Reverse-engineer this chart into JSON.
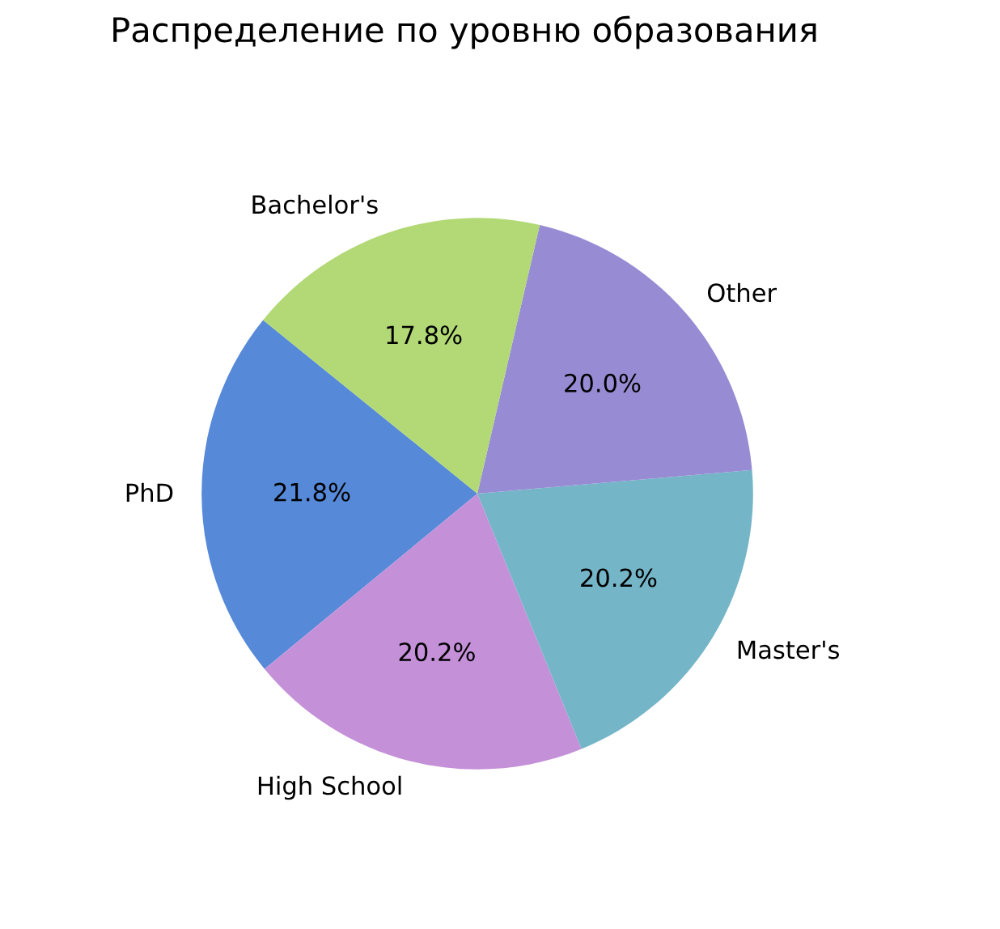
{
  "chart_data": {
    "type": "pie",
    "title": "Распределение по уровню образования",
    "categories": [
      "PhD",
      "High School",
      "Master's",
      "Other",
      "Bachelor's"
    ],
    "values": [
      21.8,
      20.2,
      20.2,
      20.0,
      17.8
    ],
    "colors": [
      "#5689d8",
      "#c490d8",
      "#75b5c8",
      "#978cd4",
      "#b2d975"
    ],
    "value_labels": [
      "21.8%",
      "20.2%",
      "20.2%",
      "20.0%",
      "17.8%"
    ]
  }
}
